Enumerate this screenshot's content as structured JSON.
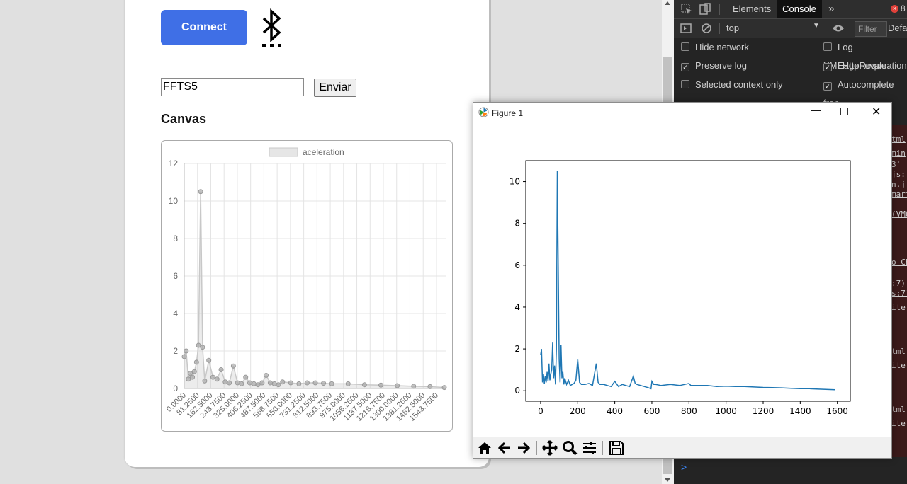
{
  "webpage": {
    "connect_label": "Connect",
    "input_value": "FFTS5",
    "send_label": "Enviar",
    "canvas_heading": "Canvas",
    "chart_data": {
      "type": "line",
      "legend": "aceleration",
      "yticks": [
        "0",
        "2",
        "4",
        "6",
        "8",
        "10",
        "12"
      ],
      "ylim": [
        0,
        12
      ],
      "xticks": [
        "0.0000",
        "81.2500",
        "162.5000",
        "243.7500",
        "325.0000",
        "406.2500",
        "487.5000",
        "568.7500",
        "650.0000",
        "731.2500",
        "812.5000",
        "893.7500",
        "975.0000",
        "1056.2500",
        "1137.5000",
        "1218.7500",
        "1300.0000",
        "1381.2500",
        "1462.5000",
        "1543.7500"
      ],
      "x": [
        0,
        12,
        25,
        37,
        50,
        62,
        75,
        87,
        100,
        112,
        125,
        150,
        175,
        200,
        225,
        250,
        275,
        300,
        325,
        350,
        375,
        400,
        425,
        450,
        475,
        500,
        525,
        550,
        575,
        600,
        650,
        700,
        750,
        800,
        850,
        900,
        1000,
        1100,
        1200,
        1300,
        1400,
        1500,
        1587
      ],
      "values": [
        1.7,
        2.0,
        0.5,
        0.8,
        0.6,
        0.9,
        1.4,
        2.3,
        10.5,
        2.2,
        0.4,
        1.5,
        0.6,
        0.5,
        1.0,
        0.35,
        0.3,
        1.2,
        0.3,
        0.25,
        0.6,
        0.3,
        0.25,
        0.2,
        0.3,
        0.7,
        0.3,
        0.25,
        0.2,
        0.35,
        0.3,
        0.25,
        0.3,
        0.3,
        0.28,
        0.25,
        0.25,
        0.2,
        0.18,
        0.15,
        0.12,
        0.1,
        0.05
      ]
    }
  },
  "devtools": {
    "tabs": [
      "Elements",
      "Console"
    ],
    "active_tab": "Console",
    "error_count": "8",
    "context": "top",
    "filter_placeholder": "Filter",
    "levels": "Defa",
    "options_left": [
      {
        "label": "Hide network",
        "checked": false
      },
      {
        "label": "Preserve log",
        "checked": true
      },
      {
        "label": "Selected context only",
        "checked": false
      }
    ],
    "options_right": [
      {
        "label": "Log XMLHttpReque",
        "checked": false
      },
      {
        "label": "Eager evaluation",
        "checked": true
      },
      {
        "label": "Autocomplete fron",
        "checked": true
      }
    ],
    "log_fragments": [
      "tml",
      "min",
      "3'",
      "js:",
      "n.j",
      "mart",
      "(VM6",
      "o Ch",
      ":7)",
      "s:7)",
      "ite.",
      "tml",
      "ite.",
      "tml",
      "ite."
    ],
    "prompt": ">"
  },
  "figure": {
    "title": "Figure 1",
    "toolbar": [
      "home-icon",
      "back-icon",
      "forward-icon",
      "pan-icon",
      "zoom-icon",
      "configure-icon",
      "save-icon"
    ],
    "chart_data": {
      "type": "line",
      "x": [
        0,
        5,
        10,
        15,
        20,
        25,
        30,
        35,
        40,
        45,
        50,
        55,
        60,
        65,
        70,
        75,
        80,
        85,
        90,
        95,
        100,
        105,
        110,
        115,
        120,
        125,
        130,
        140,
        150,
        160,
        170,
        180,
        190,
        200,
        210,
        220,
        240,
        260,
        280,
        300,
        310,
        320,
        340,
        360,
        380,
        400,
        420,
        440,
        460,
        480,
        500,
        510,
        520,
        540,
        560,
        580,
        595,
        600,
        610,
        620,
        650,
        700,
        750,
        800,
        810,
        850,
        900,
        950,
        1000,
        1050,
        1100,
        1150,
        1200,
        1250,
        1300,
        1350,
        1400,
        1450,
        1500,
        1550,
        1587
      ],
      "values": [
        1.7,
        2.0,
        0.4,
        0.8,
        0.35,
        0.7,
        0.4,
        0.9,
        0.45,
        1.3,
        0.5,
        0.8,
        1.0,
        2.3,
        0.6,
        1.2,
        0.3,
        2.0,
        10.5,
        6.0,
        1.5,
        0.4,
        2.2,
        0.6,
        0.9,
        0.3,
        0.6,
        0.3,
        0.5,
        0.25,
        0.3,
        0.35,
        0.5,
        1.5,
        0.4,
        0.3,
        0.3,
        0.35,
        0.25,
        1.3,
        0.4,
        0.3,
        0.3,
        0.25,
        0.2,
        0.45,
        0.2,
        0.3,
        0.25,
        0.2,
        0.7,
        0.35,
        0.3,
        0.25,
        0.2,
        0.15,
        0.1,
        0.45,
        0.3,
        0.3,
        0.25,
        0.3,
        0.25,
        0.35,
        0.25,
        0.25,
        0.25,
        0.2,
        0.22,
        0.2,
        0.2,
        0.18,
        0.16,
        0.15,
        0.14,
        0.12,
        0.1,
        0.1,
        0.08,
        0.06,
        0.05
      ],
      "xlim": [
        -80,
        1670
      ],
      "ylim": [
        -0.5,
        11
      ],
      "xticks": [
        0,
        200,
        400,
        600,
        800,
        1000,
        1200,
        1400,
        1600
      ],
      "yticks": [
        0,
        2,
        4,
        6,
        8,
        10
      ],
      "color": "#1f77b4"
    }
  }
}
